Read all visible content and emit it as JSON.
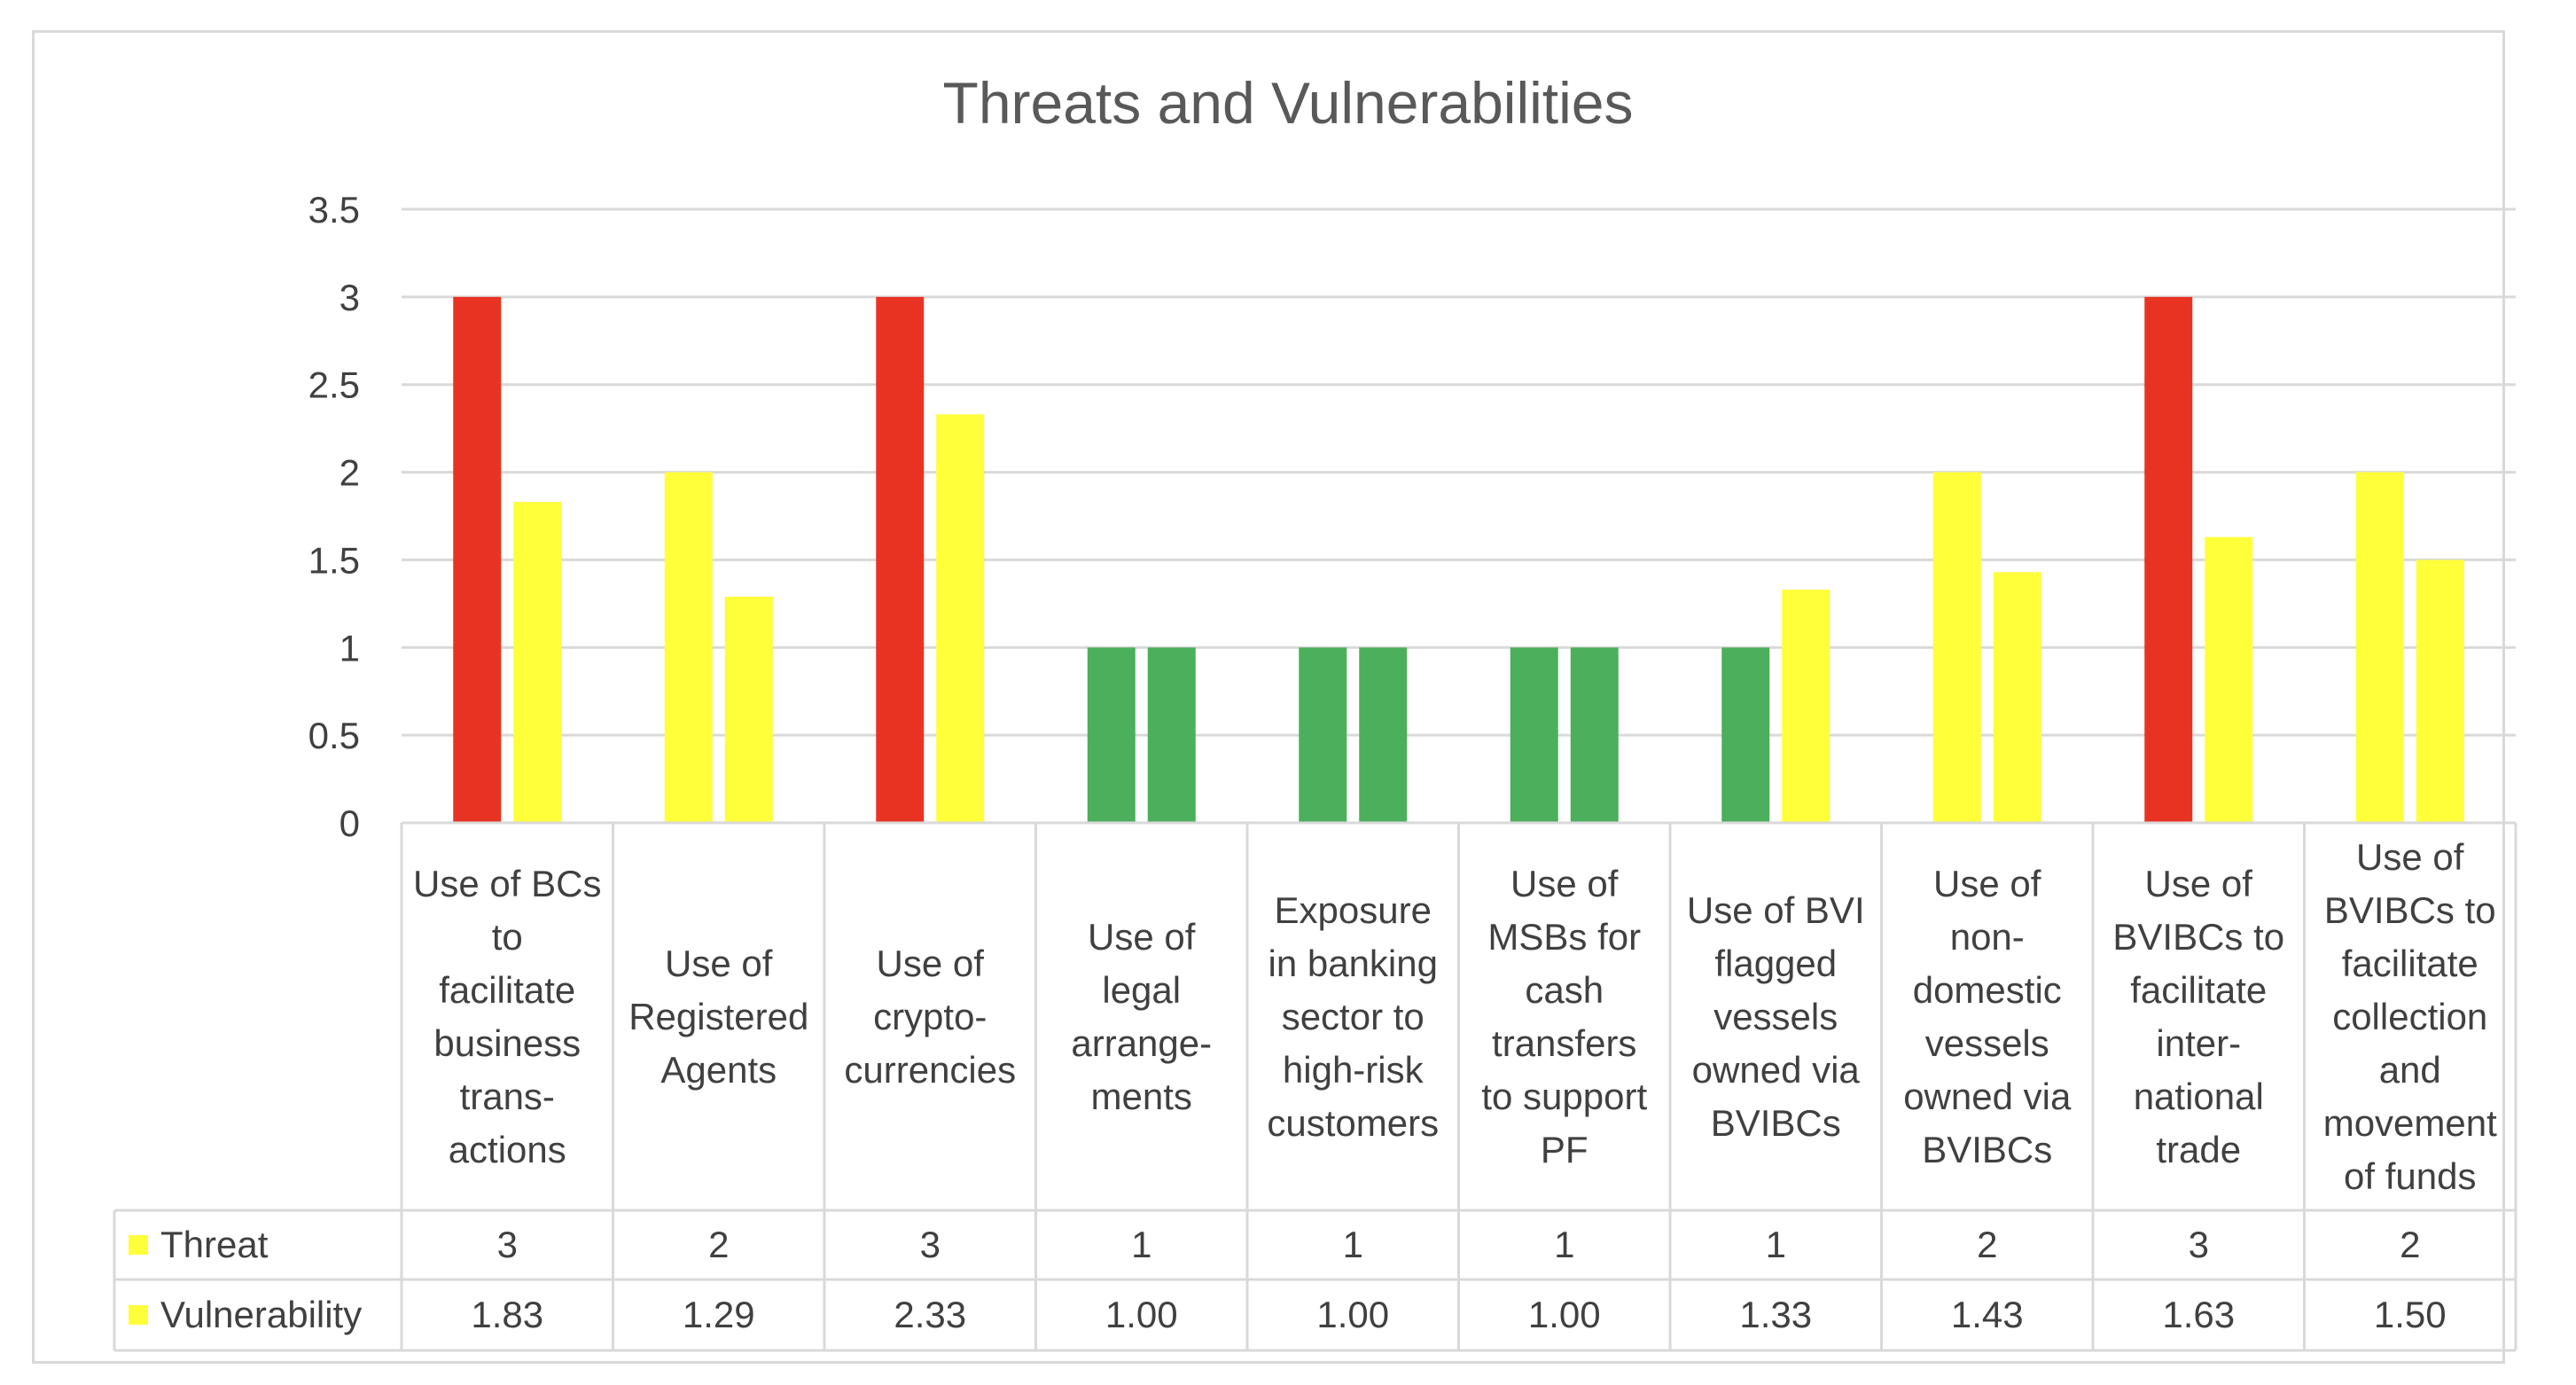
{
  "chart_data": {
    "type": "bar",
    "title": "Threats and Vulnerabilities",
    "xlabel": "",
    "ylabel": "",
    "ylim": [
      0,
      3.5
    ],
    "yticks": [
      0,
      0.5,
      1,
      1.5,
      2,
      2.5,
      3,
      3.5
    ],
    "ytick_labels": [
      "0",
      "0.5",
      "1",
      "1.5",
      "2",
      "2.5",
      "3",
      "3.5"
    ],
    "grid": true,
    "legend_placement": "data-table",
    "categories": [
      "Use of BCs to facilitate business trans-actions",
      "Use of Registered Agents",
      "Use of crypto-currencies",
      "Use of legal arrange-ments",
      "Exposure in banking sector to high-risk customers",
      "Use of MSBs for cash transfers to support PF",
      "Use of BVI flagged vessels owned via BVIBCs",
      "Use of non-domestic vessels owned via BVIBCs",
      "Use of BVIBCs to facilitate inter-national trade",
      "Use of BVIBCs to facilitate collection and movement of funds"
    ],
    "category_lines": [
      [
        "Use of BCs",
        "to",
        "facilitate",
        "business",
        "trans-",
        "actions"
      ],
      [
        "Use of",
        "Registered",
        "Agents"
      ],
      [
        "Use of",
        "crypto-",
        "currencies"
      ],
      [
        "Use of",
        "legal",
        "arrange-",
        "ments"
      ],
      [
        "Exposure",
        "in banking",
        "sector to",
        "high-risk",
        "customers"
      ],
      [
        "Use of",
        "MSBs for",
        "cash",
        "transfers",
        "to support",
        "PF"
      ],
      [
        "Use of BVI",
        "flagged",
        "vessels",
        "owned via",
        "BVIBCs"
      ],
      [
        "Use of",
        "non-",
        "domestic",
        "vessels",
        "owned via",
        "BVIBCs"
      ],
      [
        "Use of",
        "BVIBCs to",
        "facilitate",
        "inter-",
        "national",
        "trade"
      ],
      [
        "Use of",
        "BVIBCs to",
        "facilitate",
        "collection",
        "and",
        "movement",
        "of funds"
      ]
    ],
    "series": [
      {
        "name": "Threat",
        "legend_color": "#ffff3a",
        "values": [
          3,
          2,
          3,
          1,
          1,
          1,
          1,
          2,
          3,
          2
        ],
        "value_labels": [
          "3",
          "2",
          "3",
          "1",
          "1",
          "1",
          "1",
          "2",
          "3",
          "2"
        ],
        "bar_colors": [
          "#e83323",
          "#ffff3a",
          "#e83323",
          "#4caf5b",
          "#4caf5b",
          "#4caf5b",
          "#4caf5b",
          "#ffff3a",
          "#e83323",
          "#ffff3a"
        ]
      },
      {
        "name": "Vulnerability",
        "legend_color": "#ffff3a",
        "values": [
          1.83,
          1.29,
          2.33,
          1.0,
          1.0,
          1.0,
          1.33,
          1.43,
          1.63,
          1.5
        ],
        "value_labels": [
          "1.83",
          "1.29",
          "2.33",
          "1.00",
          "1.00",
          "1.00",
          "1.33",
          "1.43",
          "1.63",
          "1.50"
        ],
        "bar_colors": [
          "#ffff3a",
          "#ffff3a",
          "#ffff3a",
          "#4caf5b",
          "#4caf5b",
          "#4caf5b",
          "#ffff3a",
          "#ffff3a",
          "#ffff3a",
          "#ffff3a"
        ]
      }
    ],
    "colors": {
      "grid": "#d9d9d9",
      "table_border": "#d9d9d9",
      "text": "#404040",
      "title": "#595959"
    }
  }
}
